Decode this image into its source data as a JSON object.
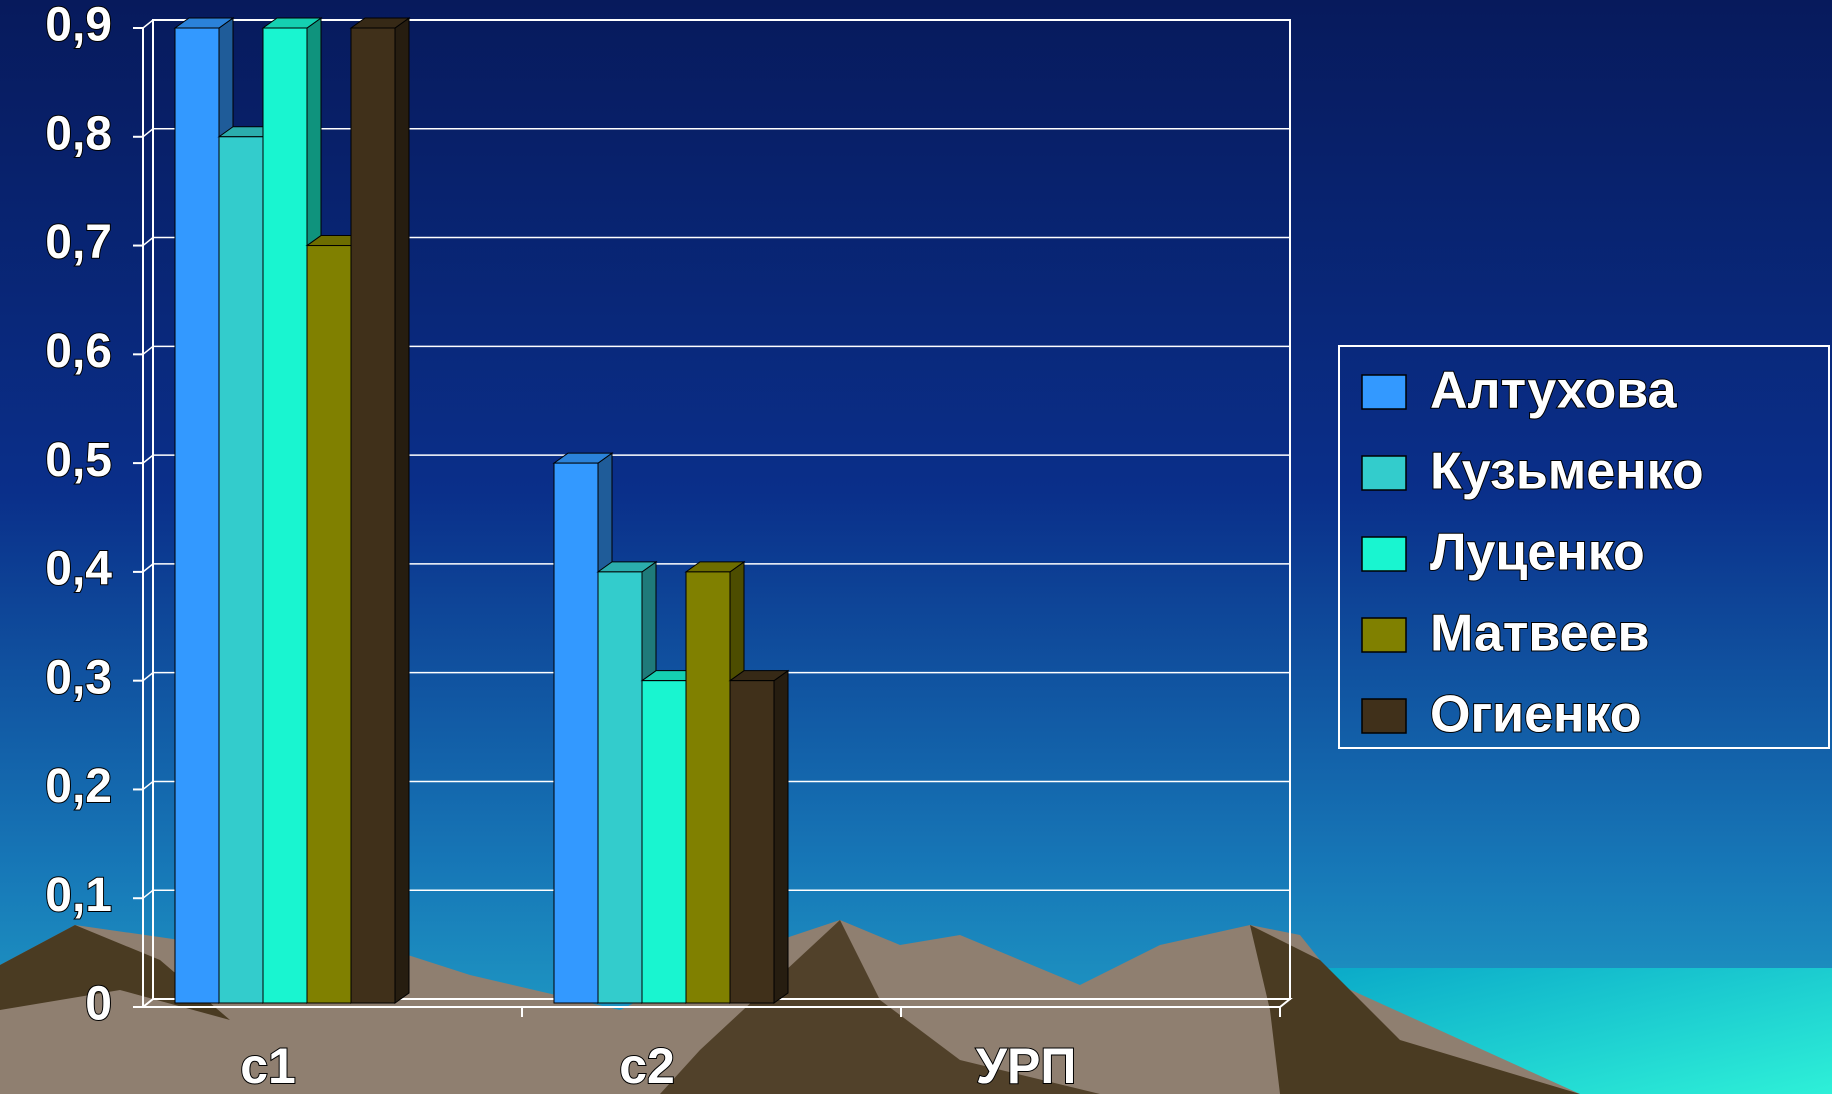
{
  "chart_data": {
    "type": "bar3d",
    "categories": [
      "c1",
      "c2",
      "УРП"
    ],
    "series": [
      {
        "name": "Алтухова",
        "color": "#3399ff",
        "values": [
          0.9,
          0.5,
          null
        ]
      },
      {
        "name": "Кузьменко",
        "color": "#33cccc",
        "values": [
          0.8,
          0.4,
          null
        ]
      },
      {
        "name": "Луценко",
        "color": "#19f5d0",
        "values": [
          0.9,
          0.3,
          null
        ]
      },
      {
        "name": "Матвеев",
        "color": "#808000",
        "values": [
          0.7,
          0.4,
          null
        ]
      },
      {
        "name": "Огиенко",
        "color": "#40301a",
        "values": [
          0.9,
          0.3,
          null
        ]
      }
    ],
    "ylim": [
      0,
      0.9
    ],
    "yticks": [
      0,
      {
        "value": 0.1,
        "label": "0,1"
      },
      {
        "value": 0.2,
        "label": "0,2"
      },
      {
        "value": 0.3,
        "label": "0,3"
      },
      {
        "value": 0.4,
        "label": "0,4"
      },
      {
        "value": 0.5,
        "label": "0,5"
      },
      {
        "value": 0.6,
        "label": "0,6"
      },
      {
        "value": 0.7,
        "label": "0,7"
      },
      {
        "value": 0.8,
        "label": "0,8"
      },
      {
        "value": 0.9,
        "label": "0,9"
      }
    ],
    "grid": true,
    "legend": "right"
  }
}
